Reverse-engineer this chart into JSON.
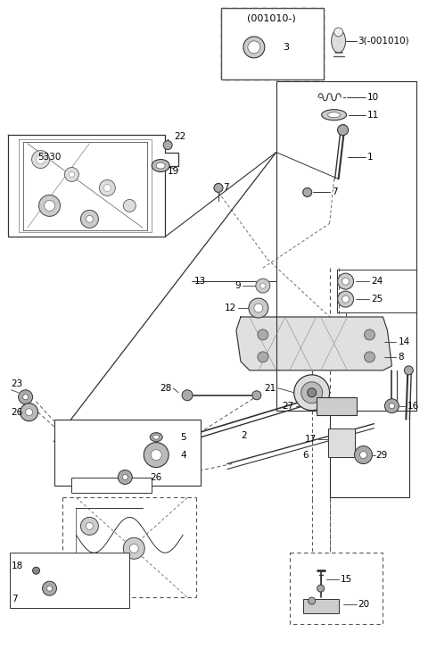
{
  "fig_width": 4.8,
  "fig_height": 7.27,
  "dpi": 100,
  "bg_color": "#ffffff",
  "line_color": "#333333"
}
